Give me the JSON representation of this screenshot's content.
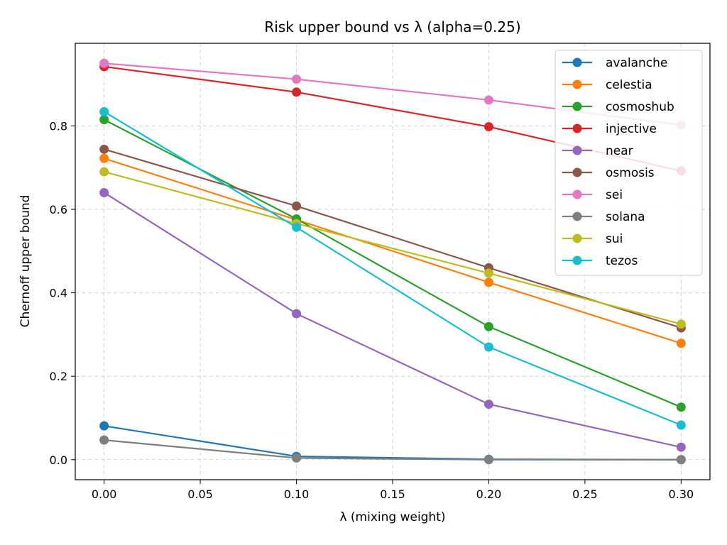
{
  "chart_data": {
    "type": "line",
    "title": "Risk upper bound vs λ (alpha=0.25)",
    "xlabel": "λ (mixing weight)",
    "ylabel": "Chernoff upper bound",
    "x": [
      0.0,
      0.1,
      0.2,
      0.3
    ],
    "xlim": [
      -0.015,
      0.315
    ],
    "ylim": [
      -0.048,
      0.998
    ],
    "x_ticks": [
      0.0,
      0.05,
      0.1,
      0.15,
      0.2,
      0.25,
      0.3
    ],
    "x_tick_labels": [
      "0.00",
      "0.05",
      "0.10",
      "0.15",
      "0.20",
      "0.25",
      "0.30"
    ],
    "y_ticks": [
      0.0,
      0.2,
      0.4,
      0.6,
      0.8
    ],
    "y_tick_labels": [
      "0.0",
      "0.2",
      "0.4",
      "0.6",
      "0.8"
    ],
    "grid": true,
    "legend_position": "top-right",
    "series": [
      {
        "name": "avalanche",
        "color": "#1f77b4",
        "values": [
          0.081,
          0.008,
          0.001,
          0.0
        ]
      },
      {
        "name": "celestia",
        "color": "#ff7f0e",
        "values": [
          0.722,
          0.575,
          0.425,
          0.279
        ]
      },
      {
        "name": "cosmoshub",
        "color": "#2ca02c",
        "values": [
          0.815,
          0.577,
          0.319,
          0.126
        ]
      },
      {
        "name": "injective",
        "color": "#d62728",
        "values": [
          0.942,
          0.881,
          0.798,
          0.692
        ]
      },
      {
        "name": "near",
        "color": "#9467bd",
        "values": [
          0.64,
          0.35,
          0.133,
          0.03
        ]
      },
      {
        "name": "osmosis",
        "color": "#8c564b",
        "values": [
          0.744,
          0.608,
          0.46,
          0.316
        ]
      },
      {
        "name": "sei",
        "color": "#e377c2",
        "values": [
          0.95,
          0.912,
          0.862,
          0.802
        ]
      },
      {
        "name": "solana",
        "color": "#7f7f7f",
        "values": [
          0.047,
          0.004,
          0.0,
          0.0
        ]
      },
      {
        "name": "sui",
        "color": "#bcbd22",
        "values": [
          0.69,
          0.566,
          0.447,
          0.325
        ]
      },
      {
        "name": "tezos",
        "color": "#17becf",
        "values": [
          0.834,
          0.557,
          0.27,
          0.083
        ]
      }
    ]
  }
}
